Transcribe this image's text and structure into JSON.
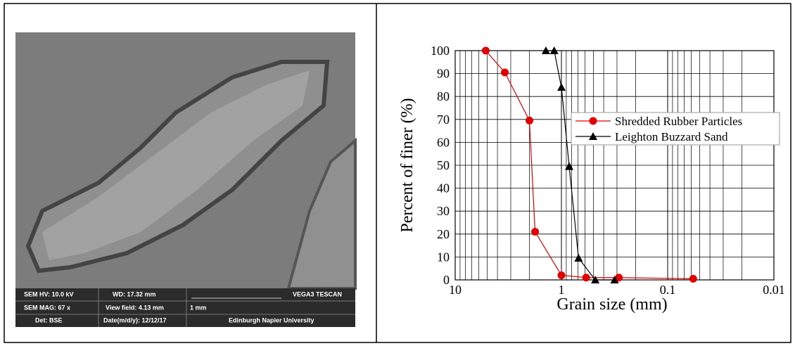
{
  "sem_image": {
    "info": [
      "SEM HV: 10.0 kV",
      "WD: 17.32 mm",
      "VEGA3 TESCAN",
      "SEM MAG: 67 x",
      "View field: 4.13 mm",
      "1 mm",
      "Det: BSE",
      "Date(m/d/y): 12/12/17",
      "Edinburgh Napier University"
    ]
  },
  "chart_data": {
    "type": "line",
    "x_label": "Grain size (mm)",
    "y_label": "Percent of finer (%)",
    "xlim": [
      10,
      0.01
    ],
    "xticks": [
      10,
      1,
      0.1,
      0.01
    ],
    "xscale": "log",
    "ylim": [
      0,
      100
    ],
    "yticks": [
      0,
      10,
      20,
      30,
      40,
      50,
      60,
      70,
      80,
      90,
      100
    ],
    "grid": true,
    "legend": "upper right",
    "series": [
      {
        "name": "Shredded Rubber Particles",
        "color": "#e00000",
        "marker": "circle",
        "x": [
          5.16,
          3.41,
          2.0,
          1.77,
          1.0,
          0.585,
          0.288,
          0.0575
        ],
        "values": [
          100,
          90.5,
          69.5,
          21,
          2,
          1,
          1,
          0.5
        ]
      },
      {
        "name": "Leighton Buzzard Sand",
        "color": "#000000",
        "marker": "triangle",
        "x": [
          1.4,
          1.17,
          1.0,
          0.845,
          0.69,
          0.48,
          0.316
        ],
        "values": [
          100,
          100,
          84,
          49.5,
          9.5,
          0,
          0
        ]
      }
    ]
  }
}
